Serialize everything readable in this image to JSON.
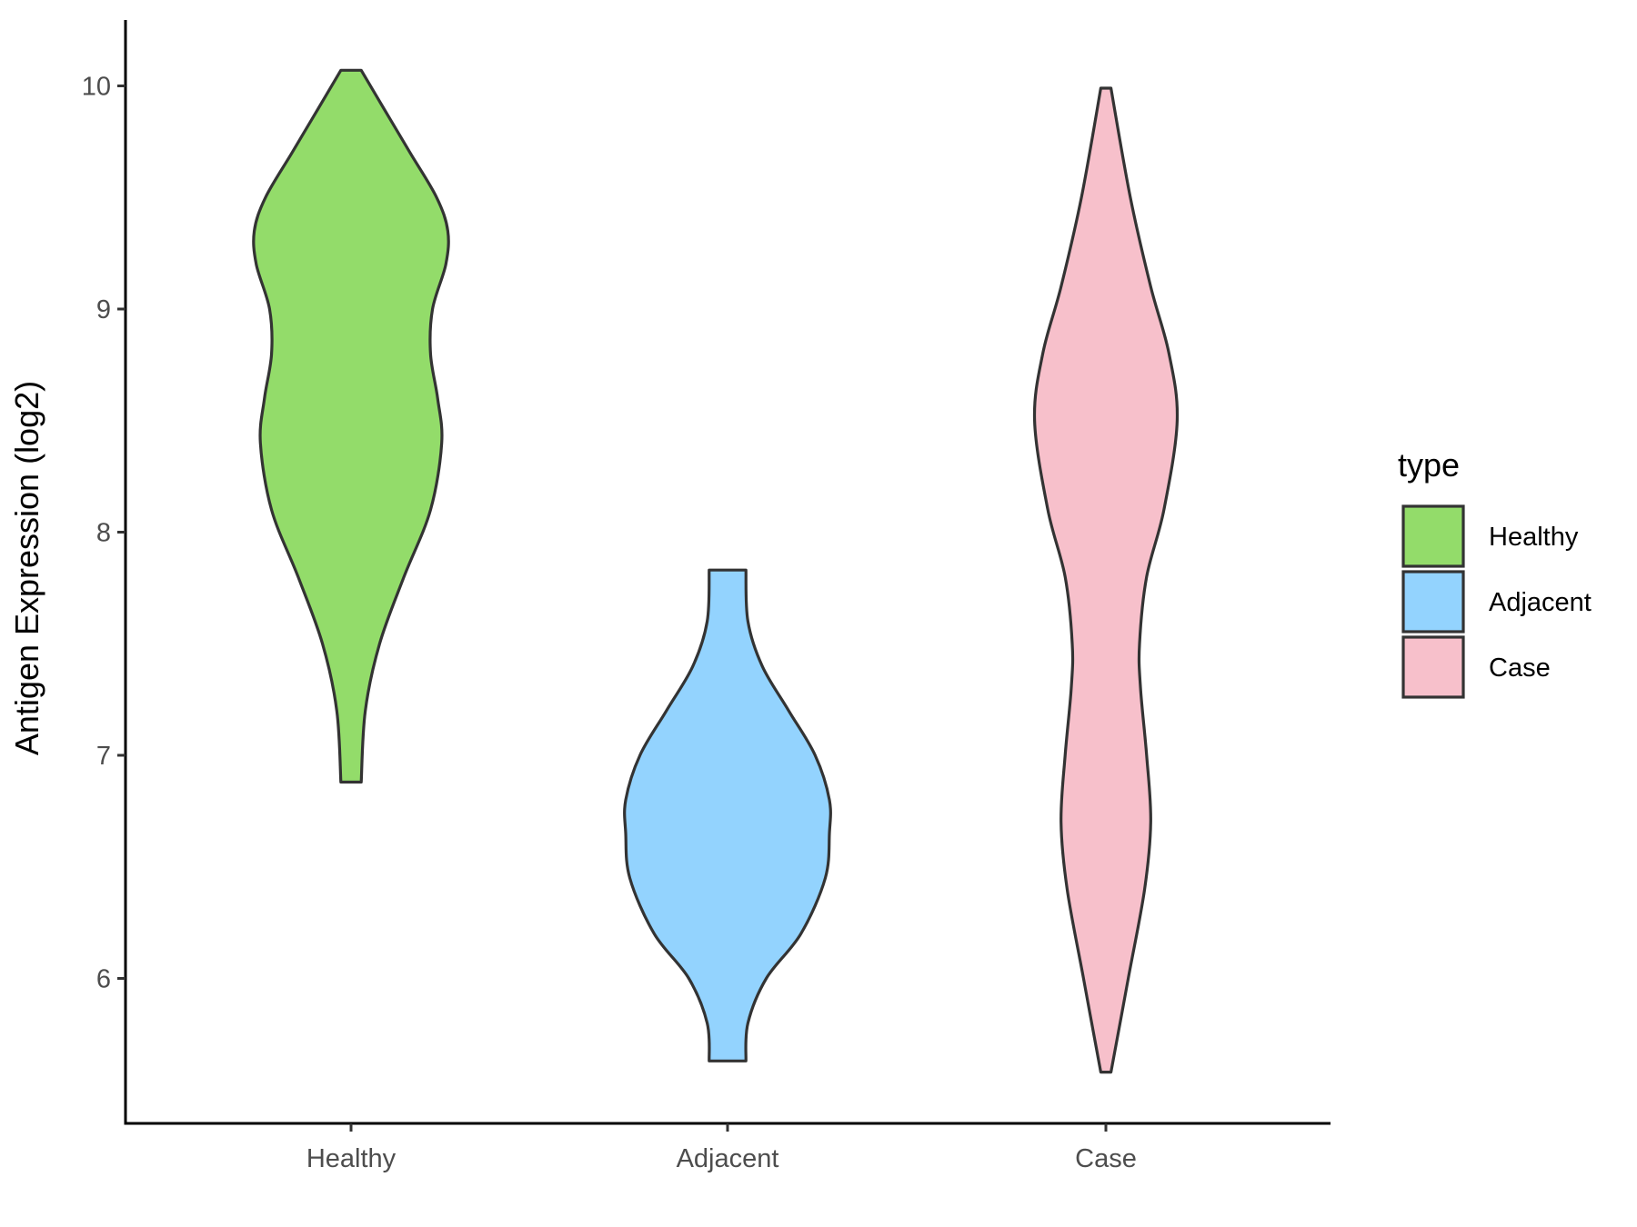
{
  "chart_data": {
    "type": "violin",
    "ylabel": "Antigen Expression (log2)",
    "xlabel": "",
    "ylim": [
      5.45,
      10.3
    ],
    "yticks": [
      6,
      7,
      8,
      9,
      10
    ],
    "grid": false,
    "legend_position": "right",
    "legend": {
      "title": "type",
      "entries": [
        "Healthy",
        "Adjacent",
        "Case"
      ]
    },
    "categories": [
      "Healthy",
      "Adjacent",
      "Case"
    ],
    "series": [
      {
        "name": "Healthy",
        "color": "#93dc6a",
        "min": 6.88,
        "max": 10.07,
        "density_profile": [
          [
            6.88,
            0.1
          ],
          [
            7.2,
            0.14
          ],
          [
            7.5,
            0.28
          ],
          [
            7.8,
            0.52
          ],
          [
            8.1,
            0.78
          ],
          [
            8.4,
            0.89
          ],
          [
            8.6,
            0.85
          ],
          [
            8.8,
            0.78
          ],
          [
            9.0,
            0.8
          ],
          [
            9.2,
            0.93
          ],
          [
            9.35,
            0.95
          ],
          [
            9.5,
            0.84
          ],
          [
            9.7,
            0.58
          ],
          [
            9.9,
            0.32
          ],
          [
            10.07,
            0.1
          ]
        ]
      },
      {
        "name": "Adjacent",
        "color": "#93d3fe",
        "min": 5.63,
        "max": 7.83,
        "density_profile": [
          [
            5.63,
            0.18
          ],
          [
            5.8,
            0.2
          ],
          [
            6.0,
            0.38
          ],
          [
            6.2,
            0.72
          ],
          [
            6.45,
            0.96
          ],
          [
            6.65,
            1.0
          ],
          [
            6.8,
            1.0
          ],
          [
            7.0,
            0.86
          ],
          [
            7.2,
            0.6
          ],
          [
            7.4,
            0.34
          ],
          [
            7.6,
            0.2
          ],
          [
            7.83,
            0.18
          ]
        ]
      },
      {
        "name": "Case",
        "color": "#f7c0cb",
        "min": 5.58,
        "max": 9.99,
        "density_profile": [
          [
            5.58,
            0.05
          ],
          [
            6.0,
            0.22
          ],
          [
            6.4,
            0.38
          ],
          [
            6.7,
            0.44
          ],
          [
            7.0,
            0.4
          ],
          [
            7.3,
            0.34
          ],
          [
            7.5,
            0.33
          ],
          [
            7.8,
            0.4
          ],
          [
            8.1,
            0.57
          ],
          [
            8.5,
            0.7
          ],
          [
            8.8,
            0.62
          ],
          [
            9.1,
            0.44
          ],
          [
            9.5,
            0.24
          ],
          [
            9.99,
            0.05
          ]
        ]
      }
    ]
  }
}
